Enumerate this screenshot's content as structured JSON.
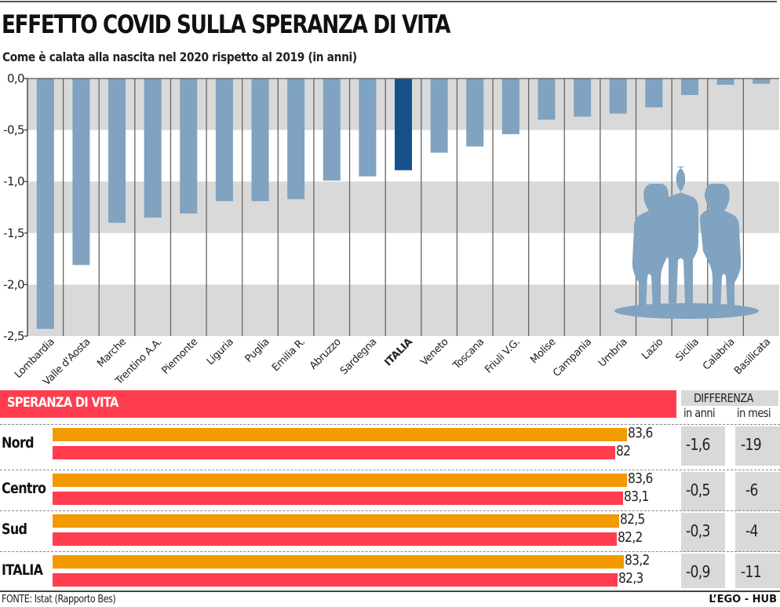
{
  "header": {
    "title": "EFFETTO COVID SULLA SPERANZA DI VITA",
    "subtitle": "Come è calata alla nascita nel 2020 rispetto al 2019 (in anni)"
  },
  "chart_data": {
    "type": "bar",
    "title": "EFFETTO COVID SULLA SPERANZA DI VITA",
    "subtitle": "Come è calata alla nascita nel 2020 rispetto al 2019 (in anni)",
    "xlabel": "",
    "ylabel": "",
    "ylim": [
      -2.5,
      0.0
    ],
    "yticks": [
      "0,0",
      "-0,5",
      "-1,0",
      "-1,5",
      "-2,0",
      "-2,5"
    ],
    "ytick_values": [
      0,
      -0.5,
      -1.0,
      -1.5,
      -2.0,
      -2.5
    ],
    "grid": "alternating horizontal bands",
    "categories": [
      "Lombardia",
      "Valle d'Aosta",
      "Marche",
      "Trentino A.A.",
      "Piemonte",
      "Liguria",
      "Puglia",
      "Emilia R.",
      "Abruzzo",
      "Sardegna",
      "ITALIA",
      "Veneto",
      "Toscana",
      "Friuli V.G.",
      "Molise",
      "Campania",
      "Umbria",
      "Lazio",
      "Sicilia",
      "Calabria",
      "Basilicata"
    ],
    "values": [
      -2.43,
      -1.81,
      -1.4,
      -1.35,
      -1.31,
      -1.19,
      -1.19,
      -1.17,
      -0.99,
      -0.95,
      -0.89,
      -0.72,
      -0.66,
      -0.54,
      -0.4,
      -0.37,
      -0.34,
      -0.28,
      -0.16,
      -0.06,
      -0.05
    ],
    "highlight": "ITALIA",
    "colors": {
      "bar": "#7fa3c0",
      "highlight": "#17518c",
      "band": "#d9d9d9",
      "figure": "#7fa3c0"
    }
  },
  "table": {
    "header_label": "SPERANZA DI VITA",
    "diff_header": "DIFFERENZA",
    "col_anni": "in anni",
    "col_mesi": "in mesi",
    "colors": {
      "year2019": "#f29a00",
      "year2020": "#ff3d4f"
    },
    "rows": [
      {
        "label": "Nord",
        "v2019": 83.6,
        "v2020": 82.0,
        "v2019_text": "83,6",
        "v2020_text": "82",
        "diff_anni": "-1,6",
        "diff_mesi": "-19"
      },
      {
        "label": "Centro",
        "v2019": 83.6,
        "v2020": 83.1,
        "v2019_text": "83,6",
        "v2020_text": "83,1",
        "diff_anni": "-0,5",
        "diff_mesi": "-6"
      },
      {
        "label": "Sud",
        "v2019": 82.5,
        "v2020": 82.2,
        "v2019_text": "82,5",
        "v2020_text": "82,2",
        "diff_anni": "-0,3",
        "diff_mesi": "-4"
      },
      {
        "label": "ITALIA",
        "v2019": 83.2,
        "v2020": 82.3,
        "v2019_text": "83,2",
        "v2020_text": "82,3",
        "diff_anni": "-0,9",
        "diff_mesi": "-11"
      }
    ]
  },
  "footer": {
    "source": "FONTE: Istat (Rapporto Bes)",
    "brand": "L’EGO - HUB"
  }
}
